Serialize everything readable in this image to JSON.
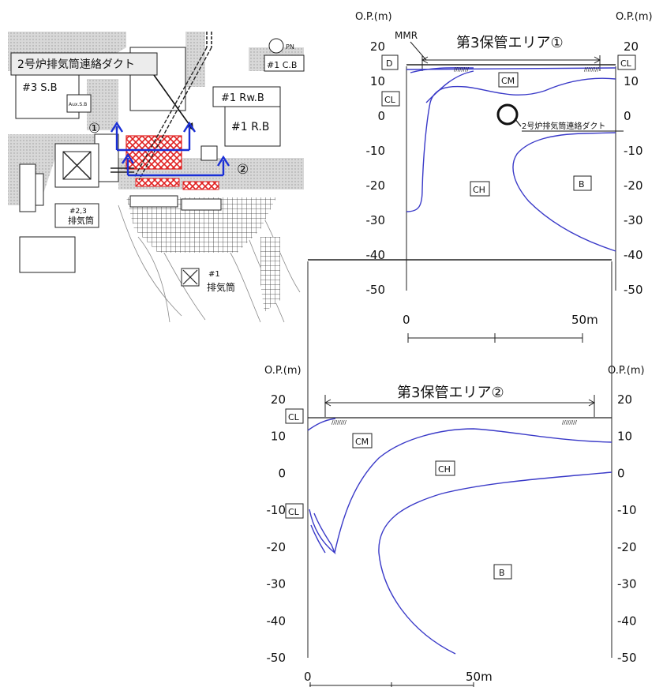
{
  "map": {
    "duct_callout": "2号炉排気筒連絡ダクト",
    "buildings": {
      "s3b": "#3 S.B",
      "rwb1": "#1 Rw.B",
      "rb1": "#1 R.B",
      "c1": "#1 C.B",
      "aux": "Aux.S.B",
      "stack23_num": "#2,3",
      "stack23_name": "排気筒",
      "stack1_num": "#1",
      "stack1_name": "排気筒",
      "pn": "PN"
    },
    "markers": {
      "m1": "①",
      "m2": "②"
    },
    "colors": {
      "arrow": "#1a2fd6",
      "hatch": "#e02020",
      "line": "#222222"
    }
  },
  "section1": {
    "unit_left": "O.P.(m)",
    "unit_right": "O.P.(m)",
    "area_title": "第3保管エリア①",
    "mmr": "MMR",
    "zones": {
      "D": "D",
      "CL_right": "CL",
      "CL_left": "CL",
      "CM": "CM",
      "CH": "CH",
      "B": "B"
    },
    "duct_label": "2号炉排気筒連絡ダクト",
    "y_ticks": [
      "20",
      "10",
      "0",
      "-10",
      "-20",
      "-30",
      "-40",
      "-50"
    ],
    "y_ticks_values": [
      20,
      10,
      0,
      -10,
      -20,
      -30,
      -40,
      -50
    ],
    "x_labels": {
      "start": "0",
      "end": "50m"
    },
    "line_color": "#3a3ac8"
  },
  "section2": {
    "unit_left": "O.P.(m)",
    "unit_right": "O.P.(m)",
    "area_title": "第3保管エリア②",
    "zones": {
      "CL_top": "CL",
      "CM": "CM",
      "CH": "CH",
      "CL_left": "CL",
      "B": "B"
    },
    "y_ticks": [
      "20",
      "10",
      "0",
      "-10",
      "-20",
      "-30",
      "-40",
      "-50"
    ],
    "y_ticks_values": [
      20,
      10,
      0,
      -10,
      -20,
      -30,
      -40,
      -50
    ],
    "x_labels": {
      "start": "0",
      "end": "50m"
    },
    "line_color": "#3a3ac8"
  }
}
